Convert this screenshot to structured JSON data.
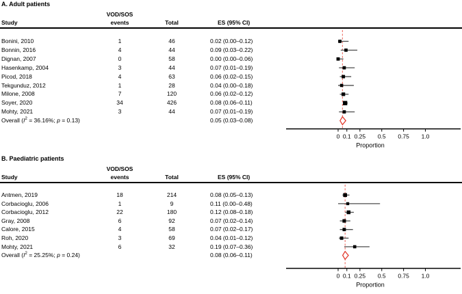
{
  "figure": {
    "xlabel": "Proportion",
    "colors": {
      "diamond_red": "#e23b2e",
      "dash_red": "#ee7167",
      "square_black": "#000000",
      "whisker_gray": "#4d4d4d",
      "axis_black": "#000000"
    }
  },
  "headers": {
    "study": "Study",
    "events_line1": "VOD/SOS",
    "events_line2": "events",
    "total": "Total",
    "es": "ES (95% CI)"
  },
  "chart_data": [
    {
      "type": "forest",
      "panel": "A",
      "title": "A. Adult patients",
      "xlabel": "Proportion",
      "xticks": [
        0,
        0.1,
        0.25,
        0.5,
        0.75,
        1.0
      ],
      "xtick_labels": [
        "0",
        "0.1",
        "0.25",
        "0.5",
        "0.75",
        "1.0"
      ],
      "xlim": [
        0,
        1.4
      ],
      "studies": [
        {
          "study": "Bonini, 2010",
          "events": "1",
          "total": "46",
          "es_text": "0.02 (0.00–0.12)",
          "es": 0.02,
          "lo": 0.0,
          "hi": 0.12
        },
        {
          "study": "Bonnin, 2016",
          "events": "4",
          "total": "44",
          "es_text": "0.09 (0.03–0.22)",
          "es": 0.09,
          "lo": 0.03,
          "hi": 0.22
        },
        {
          "study": "Dignan, 2007",
          "events": "0",
          "total": "58",
          "es_text": "0.00 (0.00–0.06)",
          "es": 0.0,
          "lo": 0.0,
          "hi": 0.06
        },
        {
          "study": "Hasenkamp, 2004",
          "events": "3",
          "total": "44",
          "es_text": "0.07 (0.01–0.19)",
          "es": 0.07,
          "lo": 0.01,
          "hi": 0.19
        },
        {
          "study": "Picod, 2018",
          "events": "4",
          "total": "63",
          "es_text": "0.06 (0.02–0.15)",
          "es": 0.06,
          "lo": 0.02,
          "hi": 0.15
        },
        {
          "study": "Tekgunduz, 2012",
          "events": "1",
          "total": "28",
          "es_text": "0.04 (0.00–0.18)",
          "es": 0.04,
          "lo": 0.0,
          "hi": 0.18
        },
        {
          "study": "Milone, 2008",
          "events": "7",
          "total": "120",
          "es_text": "0.06 (0.02–0.12)",
          "es": 0.06,
          "lo": 0.02,
          "hi": 0.12
        },
        {
          "study": "Soyer, 2020",
          "events": "34",
          "total": "426",
          "es_text": "0.08 (0.06–0.11)",
          "es": 0.08,
          "lo": 0.06,
          "hi": 0.11
        },
        {
          "study": "Mohty, 2021",
          "events": "3",
          "total": "44",
          "es_text": "0.07 (0.01–0.19)",
          "es": 0.07,
          "lo": 0.01,
          "hi": 0.19
        }
      ],
      "overall": {
        "pre": "Overall (",
        "stat": "I",
        "sup": "2",
        "mid": " = 36.16%; ",
        "pvar": "p",
        "post": " = 0.13)",
        "label_plain": "Overall (I2 = 36.16%; p = 0.13)",
        "es_text": "0.05 (0.03–0.08)",
        "es": 0.05,
        "lo": 0.03,
        "hi": 0.08
      }
    },
    {
      "type": "forest",
      "panel": "B",
      "title": "B. Paediatric patients",
      "xlabel": "Proportion",
      "xticks": [
        0,
        0.1,
        0.25,
        0.5,
        0.75,
        1.0
      ],
      "xtick_labels": [
        "0",
        "0.1",
        "0.25",
        "0.5",
        "0.75",
        "1.0"
      ],
      "xlim": [
        0,
        1.4
      ],
      "studies": [
        {
          "study": "Antmen, 2019",
          "events": "18",
          "total": "214",
          "es_text": "0.08 (0.05–0.13)",
          "es": 0.08,
          "lo": 0.05,
          "hi": 0.13
        },
        {
          "study": "Corbacioglu, 2006",
          "events": "1",
          "total": "9",
          "es_text": "0.11 (0.00–0.48)",
          "es": 0.11,
          "lo": 0.0,
          "hi": 0.48
        },
        {
          "study": "Corbacioglu, 2012",
          "events": "22",
          "total": "180",
          "es_text": "0.12 (0.08–0.18)",
          "es": 0.12,
          "lo": 0.08,
          "hi": 0.18
        },
        {
          "study": "Gray, 2008",
          "events": "6",
          "total": "92",
          "es_text": "0.07 (0.02–0.14)",
          "es": 0.07,
          "lo": 0.02,
          "hi": 0.14
        },
        {
          "study": "Calore, 2015",
          "events": "4",
          "total": "58",
          "es_text": "0.07 (0.02–0.17)",
          "es": 0.07,
          "lo": 0.02,
          "hi": 0.17
        },
        {
          "study": "Roh, 2020",
          "events": "3",
          "total": "69",
          "es_text": "0.04 (0.01–0.12)",
          "es": 0.04,
          "lo": 0.01,
          "hi": 0.12
        },
        {
          "study": "Mohty, 2021",
          "events": "6",
          "total": "32",
          "es_text": "0.19 (0.07–0.36)",
          "es": 0.19,
          "lo": 0.07,
          "hi": 0.36
        }
      ],
      "overall": {
        "pre": "Overall (",
        "stat": "I",
        "sup": "2",
        "mid": " = 25.25%; ",
        "pvar": "p",
        "post": " = 0.24)",
        "label_plain": "Overall (I2 = 25.25%; p = 0.24)",
        "es_text": "0.08 (0.06–0.11)",
        "es": 0.08,
        "lo": 0.06,
        "hi": 0.11
      }
    }
  ]
}
